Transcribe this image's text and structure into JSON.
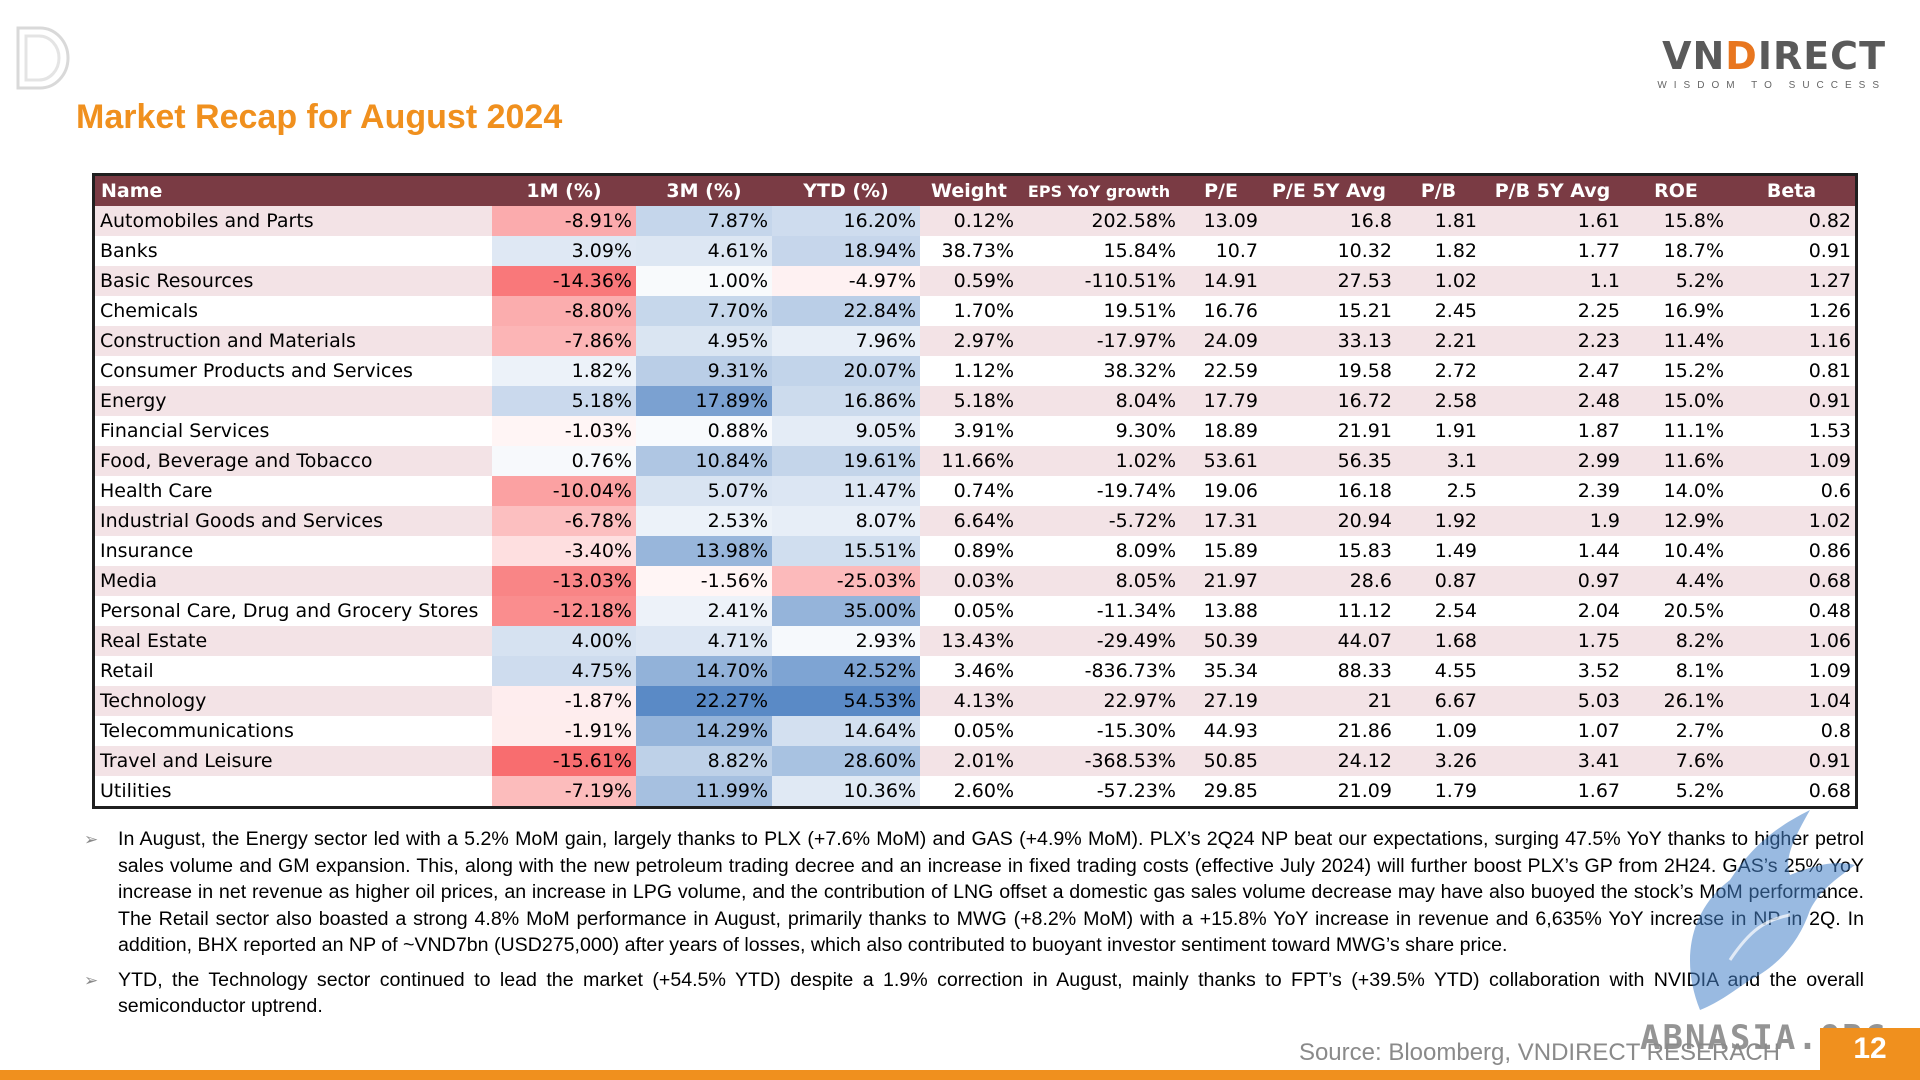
{
  "brand": {
    "logo": "VNDIRECT",
    "tagline": "WISDOM TO SUCCESS"
  },
  "title": "Market Recap for August 2024",
  "table": {
    "headers": [
      "Name",
      "1M (%)",
      "3M (%)",
      "YTD (%)",
      "Weight",
      "EPS YoY growth",
      "P/E",
      "P/E 5Y Avg",
      "P/B",
      "P/B 5Y Avg",
      "ROE",
      "Beta"
    ],
    "rows": [
      {
        "name": "Automobiles and Parts",
        "m1": "-8.91%",
        "m3": "7.87%",
        "ytd": "16.20%",
        "weight": "0.12%",
        "eps": "202.58%",
        "pe": "13.09",
        "pe5": "16.8",
        "pb": "1.81",
        "pb5": "1.61",
        "roe": "15.8%",
        "beta": "0.82"
      },
      {
        "name": "Banks",
        "m1": "3.09%",
        "m3": "4.61%",
        "ytd": "18.94%",
        "weight": "38.73%",
        "eps": "15.84%",
        "pe": "10.7",
        "pe5": "10.32",
        "pb": "1.82",
        "pb5": "1.77",
        "roe": "18.7%",
        "beta": "0.91"
      },
      {
        "name": "Basic Resources",
        "m1": "-14.36%",
        "m3": "1.00%",
        "ytd": "-4.97%",
        "weight": "0.59%",
        "eps": "-110.51%",
        "pe": "14.91",
        "pe5": "27.53",
        "pb": "1.02",
        "pb5": "1.1",
        "roe": "5.2%",
        "beta": "1.27"
      },
      {
        "name": "Chemicals",
        "m1": "-8.80%",
        "m3": "7.70%",
        "ytd": "22.84%",
        "weight": "1.70%",
        "eps": "19.51%",
        "pe": "16.76",
        "pe5": "15.21",
        "pb": "2.45",
        "pb5": "2.25",
        "roe": "16.9%",
        "beta": "1.26"
      },
      {
        "name": "Construction and Materials",
        "m1": "-7.86%",
        "m3": "4.95%",
        "ytd": "7.96%",
        "weight": "2.97%",
        "eps": "-17.97%",
        "pe": "24.09",
        "pe5": "33.13",
        "pb": "2.21",
        "pb5": "2.23",
        "roe": "11.4%",
        "beta": "1.16"
      },
      {
        "name": "Consumer Products and Services",
        "m1": "1.82%",
        "m3": "9.31%",
        "ytd": "20.07%",
        "weight": "1.12%",
        "eps": "38.32%",
        "pe": "22.59",
        "pe5": "19.58",
        "pb": "2.72",
        "pb5": "2.47",
        "roe": "15.2%",
        "beta": "0.81"
      },
      {
        "name": "Energy",
        "m1": "5.18%",
        "m3": "17.89%",
        "ytd": "16.86%",
        "weight": "5.18%",
        "eps": "8.04%",
        "pe": "17.79",
        "pe5": "16.72",
        "pb": "2.58",
        "pb5": "2.48",
        "roe": "15.0%",
        "beta": "0.91"
      },
      {
        "name": "Financial Services",
        "m1": "-1.03%",
        "m3": "0.88%",
        "ytd": "9.05%",
        "weight": "3.91%",
        "eps": "9.30%",
        "pe": "18.89",
        "pe5": "21.91",
        "pb": "1.91",
        "pb5": "1.87",
        "roe": "11.1%",
        "beta": "1.53"
      },
      {
        "name": "Food, Beverage and Tobacco",
        "m1": "0.76%",
        "m3": "10.84%",
        "ytd": "19.61%",
        "weight": "11.66%",
        "eps": "1.02%",
        "pe": "53.61",
        "pe5": "56.35",
        "pb": "3.1",
        "pb5": "2.99",
        "roe": "11.6%",
        "beta": "1.09"
      },
      {
        "name": "Health Care",
        "m1": "-10.04%",
        "m3": "5.07%",
        "ytd": "11.47%",
        "weight": "0.74%",
        "eps": "-19.74%",
        "pe": "19.06",
        "pe5": "16.18",
        "pb": "2.5",
        "pb5": "2.39",
        "roe": "14.0%",
        "beta": "0.6"
      },
      {
        "name": "Industrial Goods and Services",
        "m1": "-6.78%",
        "m3": "2.53%",
        "ytd": "8.07%",
        "weight": "6.64%",
        "eps": "-5.72%",
        "pe": "17.31",
        "pe5": "20.94",
        "pb": "1.92",
        "pb5": "1.9",
        "roe": "12.9%",
        "beta": "1.02"
      },
      {
        "name": "Insurance",
        "m1": "-3.40%",
        "m3": "13.98%",
        "ytd": "15.51%",
        "weight": "0.89%",
        "eps": "8.09%",
        "pe": "15.89",
        "pe5": "15.83",
        "pb": "1.49",
        "pb5": "1.44",
        "roe": "10.4%",
        "beta": "0.86"
      },
      {
        "name": "Media",
        "m1": "-13.03%",
        "m3": "-1.56%",
        "ytd": "-25.03%",
        "weight": "0.03%",
        "eps": "8.05%",
        "pe": "21.97",
        "pe5": "28.6",
        "pb": "0.87",
        "pb5": "0.97",
        "roe": "4.4%",
        "beta": "0.68"
      },
      {
        "name": "Personal Care, Drug and Grocery Stores",
        "m1": "-12.18%",
        "m3": "2.41%",
        "ytd": "35.00%",
        "weight": "0.05%",
        "eps": "-11.34%",
        "pe": "13.88",
        "pe5": "11.12",
        "pb": "2.54",
        "pb5": "2.04",
        "roe": "20.5%",
        "beta": "0.48"
      },
      {
        "name": "Real Estate",
        "m1": "4.00%",
        "m3": "4.71%",
        "ytd": "2.93%",
        "weight": "13.43%",
        "eps": "-29.49%",
        "pe": "50.39",
        "pe5": "44.07",
        "pb": "1.68",
        "pb5": "1.75",
        "roe": "8.2%",
        "beta": "1.06"
      },
      {
        "name": "Retail",
        "m1": "4.75%",
        "m3": "14.70%",
        "ytd": "42.52%",
        "weight": "3.46%",
        "eps": "-836.73%",
        "pe": "35.34",
        "pe5": "88.33",
        "pb": "4.55",
        "pb5": "3.52",
        "roe": "8.1%",
        "beta": "1.09"
      },
      {
        "name": "Technology",
        "m1": "-1.87%",
        "m3": "22.27%",
        "ytd": "54.53%",
        "weight": "4.13%",
        "eps": "22.97%",
        "pe": "27.19",
        "pe5": "21",
        "pb": "6.67",
        "pb5": "5.03",
        "roe": "26.1%",
        "beta": "1.04"
      },
      {
        "name": "Telecommunications",
        "m1": "-1.91%",
        "m3": "14.29%",
        "ytd": "14.64%",
        "weight": "0.05%",
        "eps": "-15.30%",
        "pe": "44.93",
        "pe5": "21.86",
        "pb": "1.09",
        "pb5": "1.07",
        "roe": "2.7%",
        "beta": "0.8"
      },
      {
        "name": "Travel and Leisure",
        "m1": "-15.61%",
        "m3": "8.82%",
        "ytd": "28.60%",
        "weight": "2.01%",
        "eps": "-368.53%",
        "pe": "50.85",
        "pe5": "24.12",
        "pb": "3.26",
        "pb5": "3.41",
        "roe": "7.6%",
        "beta": "0.91"
      },
      {
        "name": "Utilities",
        "m1": "-7.19%",
        "m3": "11.99%",
        "ytd": "10.36%",
        "weight": "2.60%",
        "eps": "-57.23%",
        "pe": "29.85",
        "pe5": "21.09",
        "pb": "1.79",
        "pb5": "1.67",
        "roe": "5.2%",
        "beta": "0.68"
      }
    ]
  },
  "notes": [
    "In August, the Energy sector led with a 5.2% MoM gain, largely thanks to PLX (+7.6% MoM) and GAS (+4.9% MoM). PLX’s 2Q24 NP beat our expectations, surging 47.5% YoY thanks to higher petrol sales volume and GM expansion. This, along with the new petroleum trading decree and an increase in fixed trading costs (effective July 2024) will further boost PLX’s GP from 2H24. GAS’s 25% YoY increase in net revenue as higher oil prices, an increase in LPG volume, and the contribution of LNG offset a domestic gas sales volume decrease may have also buoyed the stock’s MoM performance. The Retail sector also boasted a strong 4.8% MoM performance in August, primarily thanks to MWG (+8.2% MoM) with a +15.8% YoY increase in revenue and 6,635% YoY increase in NP in 2Q. In addition, BHX reported an NP of ~VND7bn (USD275,000) after years of losses, which also contributed to buoyant investor sentiment toward MWG’s share price.",
    "YTD, the Technology sector continued to lead the market (+54.5% YTD) despite a 1.9% correction in August, mainly thanks to FPT’s (+39.5% YTD) collaboration with NVIDIA and the overall semiconductor uptrend."
  ],
  "source": "Source: Bloomberg, VNDIRECT RESERACH",
  "page_number": "12",
  "watermark": "ABNASIA.ORG",
  "colors": {
    "accent": "#f0901e",
    "header_bg": "#7a3b44",
    "row_alt": "#f3e3e6",
    "negative": "#f8696b",
    "positive": "#5a8ac6"
  }
}
